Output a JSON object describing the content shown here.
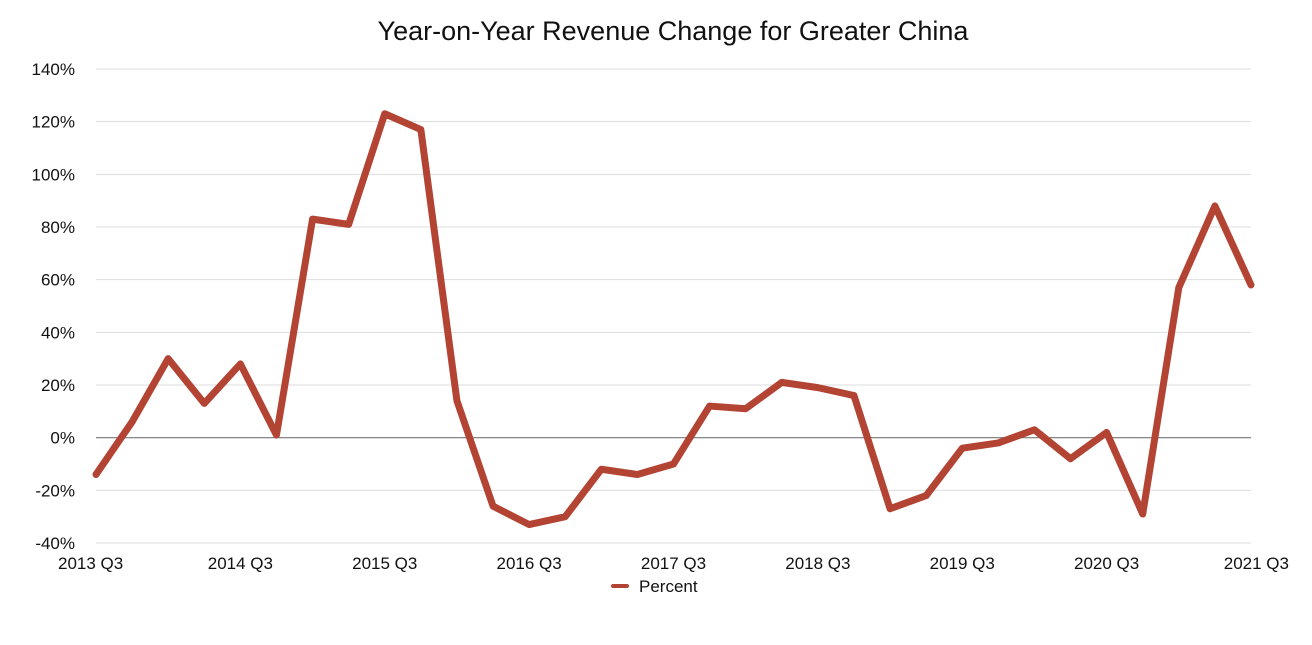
{
  "chart_data": {
    "type": "line",
    "title": "Year-on-Year Revenue Change for Greater China",
    "xlabel": "",
    "ylabel": "",
    "x_tick_labels": [
      "2013 Q3",
      "2014 Q3",
      "2015 Q3",
      "2016 Q3",
      "2017 Q3",
      "2018 Q3",
      "2019 Q3",
      "2020 Q3",
      "2021 Q3"
    ],
    "categories": [
      "2013 Q3",
      "2013 Q4",
      "2014 Q1",
      "2014 Q2",
      "2014 Q3",
      "2014 Q4",
      "2015 Q1",
      "2015 Q2",
      "2015 Q3",
      "2015 Q4",
      "2016 Q1",
      "2016 Q2",
      "2016 Q3",
      "2016 Q4",
      "2017 Q1",
      "2017 Q2",
      "2017 Q3",
      "2017 Q4",
      "2018 Q1",
      "2018 Q2",
      "2018 Q3",
      "2018 Q4",
      "2019 Q1",
      "2019 Q2",
      "2019 Q3",
      "2019 Q4",
      "2020 Q1",
      "2020 Q2",
      "2020 Q3",
      "2020 Q4",
      "2021 Q1",
      "2021 Q2",
      "2021 Q3"
    ],
    "series": [
      {
        "name": "Percent",
        "color": "#b34434",
        "values": [
          -14,
          6,
          30,
          13,
          28,
          1,
          83,
          81,
          123,
          117,
          14,
          -26,
          -33,
          -30,
          -12,
          -14,
          -10,
          12,
          11,
          21,
          19,
          16,
          -27,
          -22,
          -4,
          -2,
          3,
          -8,
          2,
          -29,
          57,
          88,
          58
        ]
      }
    ],
    "y_ticks": [
      -40,
      -20,
      0,
      20,
      40,
      60,
      80,
      100,
      120,
      140
    ],
    "y_tick_suffix": "%",
    "ylim": [
      -40,
      140
    ],
    "grid": true,
    "zero_line": true,
    "legend": {
      "position": "bottom-center",
      "label": "Percent"
    },
    "colors": {
      "line": "#b34434",
      "grid": "#dddddd",
      "zero_line": "#777777",
      "text": "#111111"
    }
  }
}
